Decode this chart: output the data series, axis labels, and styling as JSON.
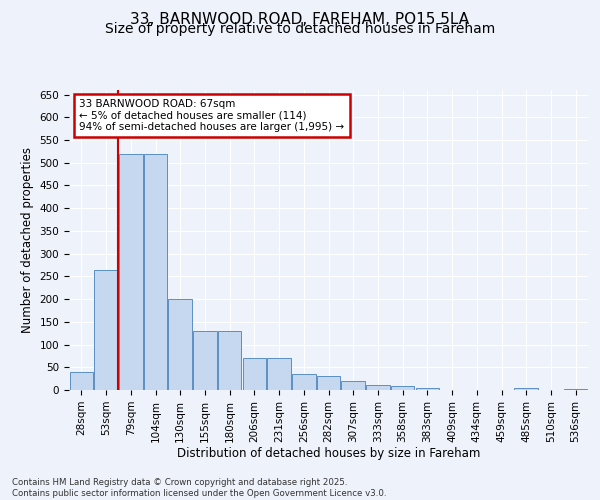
{
  "title_line1": "33, BARNWOOD ROAD, FAREHAM, PO15 5LA",
  "title_line2": "Size of property relative to detached houses in Fareham",
  "xlabel": "Distribution of detached houses by size in Fareham",
  "ylabel": "Number of detached properties",
  "categories": [
    "28sqm",
    "53sqm",
    "79sqm",
    "104sqm",
    "130sqm",
    "155sqm",
    "180sqm",
    "206sqm",
    "231sqm",
    "256sqm",
    "282sqm",
    "307sqm",
    "333sqm",
    "358sqm",
    "383sqm",
    "409sqm",
    "434sqm",
    "459sqm",
    "485sqm",
    "510sqm",
    "536sqm"
  ],
  "values": [
    40,
    265,
    520,
    520,
    200,
    130,
    130,
    70,
    70,
    35,
    30,
    20,
    12,
    8,
    4,
    1,
    1,
    0,
    4,
    0,
    2
  ],
  "bar_color": "#c5d8f0",
  "bar_edge_color": "#5b8fc4",
  "vline_color": "#cc0000",
  "vline_x": 1.5,
  "annotation_text": "33 BARNWOOD ROAD: 67sqm\n← 5% of detached houses are smaller (114)\n94% of semi-detached houses are larger (1,995) →",
  "annotation_box_color": "#ffffff",
  "annotation_box_edge_color": "#cc0000",
  "ylim": [
    0,
    660
  ],
  "yticks": [
    0,
    50,
    100,
    150,
    200,
    250,
    300,
    350,
    400,
    450,
    500,
    550,
    600,
    650
  ],
  "bg_color": "#eef2fa",
  "plot_bg_color": "#eef2fa",
  "grid_color": "#ffffff",
  "footnote": "Contains HM Land Registry data © Crown copyright and database right 2025.\nContains public sector information licensed under the Open Government Licence v3.0.",
  "title_fontsize": 11,
  "subtitle_fontsize": 10,
  "axis_label_fontsize": 8.5,
  "tick_fontsize": 7.5,
  "annotation_fontsize": 7.5
}
